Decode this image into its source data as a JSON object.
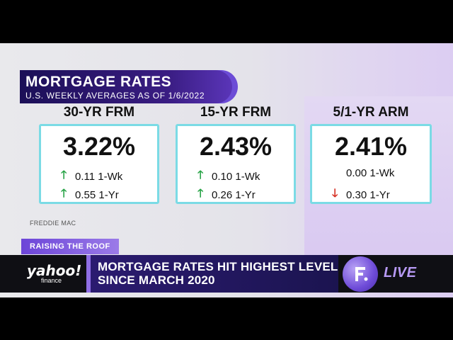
{
  "banner": {
    "title": "MORTGAGE RATES",
    "subtitle": "U.S. WEEKLY AVERAGES AS OF 1/6/2022"
  },
  "columns": [
    {
      "heading": "30-YR FRM",
      "rate": "3.22%",
      "week": {
        "value": "0.11 1-Wk",
        "direction": "up"
      },
      "year": {
        "value": "0.55 1-Yr",
        "direction": "up"
      }
    },
    {
      "heading": "15-YR FRM",
      "rate": "2.43%",
      "week": {
        "value": "0.10 1-Wk",
        "direction": "up"
      },
      "year": {
        "value": "0.26 1-Yr",
        "direction": "up"
      }
    },
    {
      "heading": "5/1-YR ARM",
      "rate": "2.41%",
      "week": {
        "value": "0.00 1-Wk",
        "direction": "none"
      },
      "year": {
        "value": "0.30 1-Yr",
        "direction": "down"
      }
    }
  ],
  "source": "FREDDIE MAC",
  "lower_third": {
    "tag": "RAISING THE ROOF",
    "logo_word": "yahoo!",
    "logo_sub": "finance",
    "headline_line1": "MORTGAGE RATES HIT HIGHEST LEVEL",
    "headline_line2": "SINCE MARCH 2020",
    "live": "LIVE"
  },
  "icons": {
    "up": "up-arrow-icon",
    "down": "down-arrow-icon"
  },
  "colors": {
    "up": "#25a244",
    "down": "#d52b1e",
    "card_border": "#7bdbe5",
    "brand_purple": "#6c45d8"
  }
}
